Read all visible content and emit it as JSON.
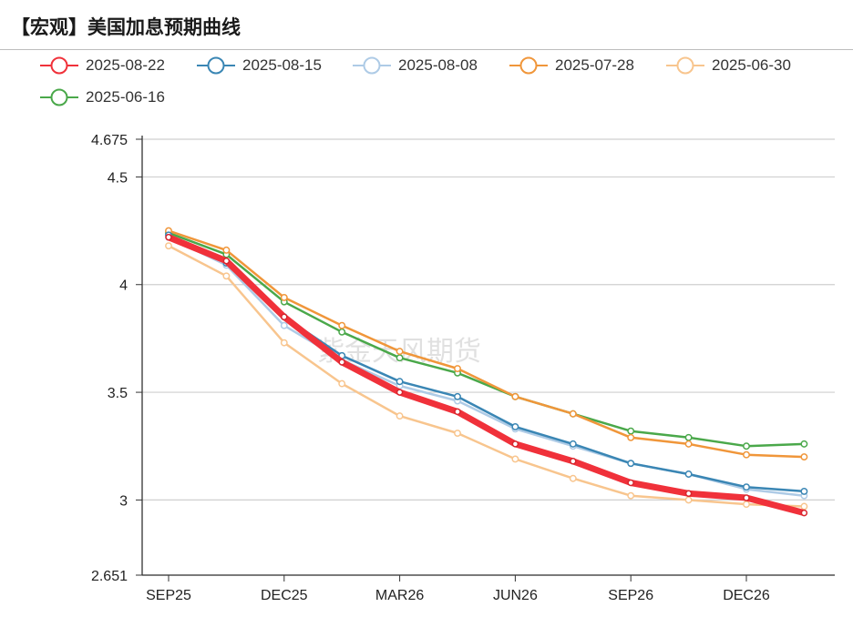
{
  "header": {
    "title": "【宏观】美国加息预期曲线"
  },
  "watermark": "紫金天风期货",
  "chart_data": {
    "type": "line",
    "title": "【宏观】美国加息预期曲线",
    "xlabel": "",
    "ylabel": "",
    "ylim": [
      2.651,
      4.675
    ],
    "y_ticks": [
      2.651,
      3,
      3.5,
      4,
      4.5,
      4.675
    ],
    "x_tick_labels": [
      "SEP25",
      "DEC25",
      "MAR26",
      "JUN26",
      "SEP26",
      "DEC26"
    ],
    "grid": true,
    "legend_position": "top",
    "series": [
      {
        "name": "2025-08-22",
        "color": "#f0313a",
        "values": [
          4.22,
          4.11,
          3.85,
          3.64,
          3.5,
          3.41,
          3.26,
          3.18,
          3.08,
          3.03,
          3.01,
          2.94
        ]
      },
      {
        "name": "2025-08-15",
        "color": "#3a86b4",
        "values": [
          4.23,
          4.1,
          3.85,
          3.67,
          3.55,
          3.48,
          3.34,
          3.26,
          3.17,
          3.12,
          3.06,
          3.04
        ]
      },
      {
        "name": "2025-08-08",
        "color": "#aecbe6",
        "values": [
          4.22,
          4.09,
          3.81,
          3.65,
          3.53,
          3.46,
          3.33,
          3.25,
          3.17,
          3.12,
          3.05,
          3.02
        ]
      },
      {
        "name": "2025-07-28",
        "color": "#f0963a",
        "values": [
          4.25,
          4.16,
          3.94,
          3.81,
          3.69,
          3.61,
          3.48,
          3.4,
          3.29,
          3.26,
          3.21,
          3.2
        ]
      },
      {
        "name": "2025-06-30",
        "color": "#f8c58e",
        "values": [
          4.18,
          4.04,
          3.73,
          3.54,
          3.39,
          3.31,
          3.19,
          3.1,
          3.02,
          3.0,
          2.98,
          2.97
        ]
      },
      {
        "name": "2025-06-16",
        "color": "#4aa84a",
        "values": [
          4.24,
          4.14,
          3.92,
          3.78,
          3.66,
          3.59,
          3.48,
          3.4,
          3.32,
          3.29,
          3.25,
          3.26
        ]
      }
    ]
  }
}
